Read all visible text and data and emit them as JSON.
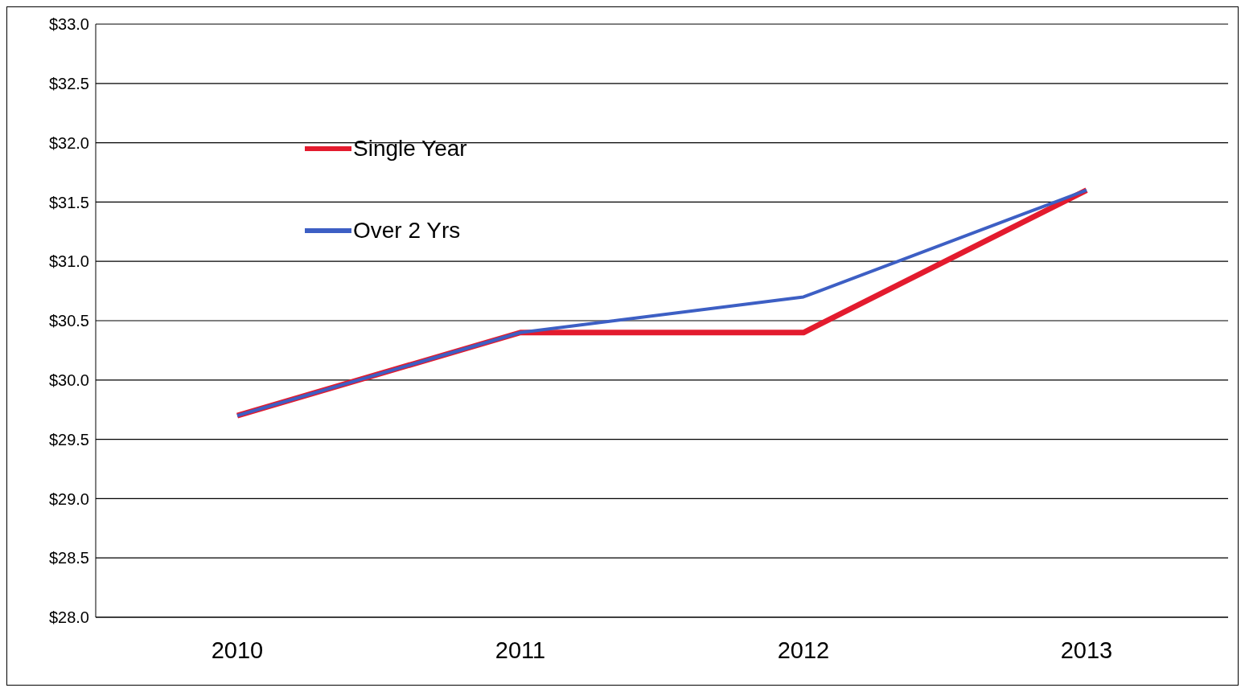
{
  "chart_data": {
    "type": "line",
    "categories": [
      "2010",
      "2011",
      "2012",
      "2013"
    ],
    "series": [
      {
        "name": "Single Year",
        "color": "#e31b2e",
        "values": [
          29.7,
          30.4,
          30.4,
          31.6
        ]
      },
      {
        "name": "Over 2 Yrs",
        "color": "#3d5fc4",
        "values": [
          29.7,
          30.4,
          30.7,
          31.6
        ]
      }
    ],
    "ylim": [
      28,
      33
    ],
    "yticks": [
      {
        "value": 28,
        "label": "$28.0"
      },
      {
        "value": 28.5,
        "label": "$28.5"
      },
      {
        "value": 29,
        "label": "$29.0"
      },
      {
        "value": 29.5,
        "label": "$29.5"
      },
      {
        "value": 30,
        "label": "$30.0"
      },
      {
        "value": 30.5,
        "label": "$30.5"
      },
      {
        "value": 31,
        "label": "$31.0"
      },
      {
        "value": 31.5,
        "label": "$31.5"
      },
      {
        "value": 32,
        "label": "$32.0"
      },
      {
        "value": 32.5,
        "label": "$32.5"
      },
      {
        "value": 33,
        "label": "$33.0"
      }
    ],
    "grid": "y",
    "legend": "top left",
    "marker": "none",
    "line_style": "solid"
  }
}
